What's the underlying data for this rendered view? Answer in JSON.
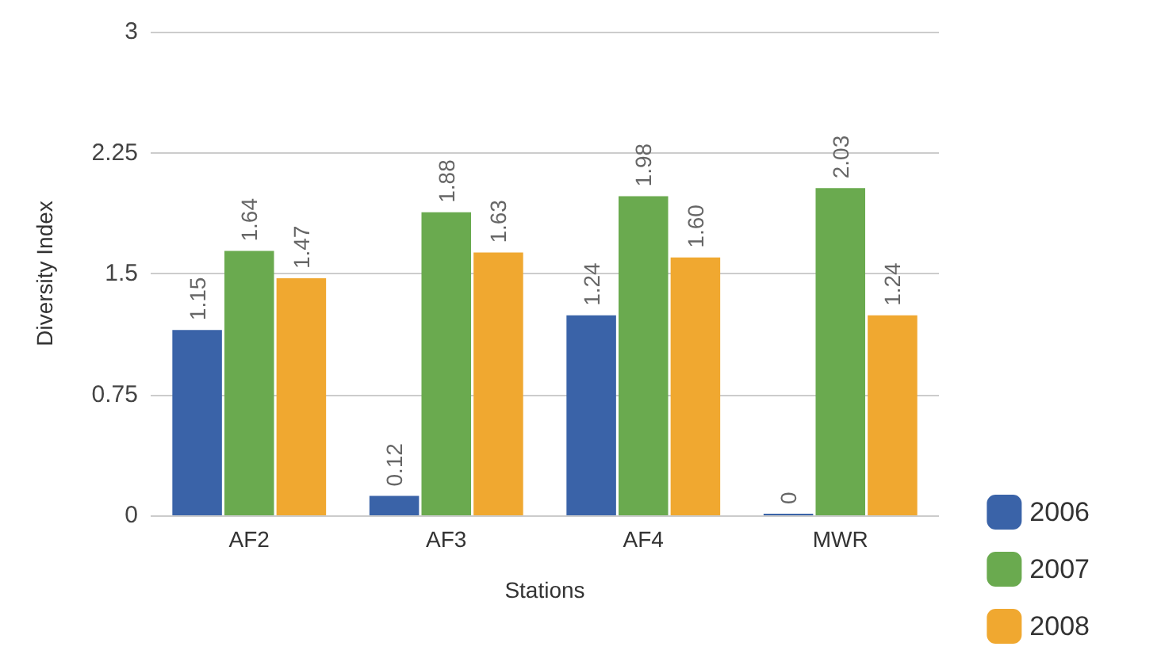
{
  "chart_data": {
    "type": "bar",
    "xlabel": "Stations",
    "ylabel": "Diversity Index",
    "categories": [
      "AF2",
      "AF3",
      "AF4",
      "MWR"
    ],
    "series": [
      {
        "name": "2006",
        "color": "#3a63a8",
        "values": [
          1.15,
          0.12,
          1.24,
          0
        ],
        "value_labels": [
          "1.15",
          "0.12",
          "1.24",
          "0"
        ]
      },
      {
        "name": "2007",
        "color": "#6aaa4f",
        "values": [
          1.64,
          1.88,
          1.98,
          2.03
        ],
        "value_labels": [
          "1.64",
          "1.88",
          "1.98",
          "2.03"
        ]
      },
      {
        "name": "2008",
        "color": "#f0a830",
        "values": [
          1.47,
          1.63,
          1.6,
          1.24
        ],
        "value_labels": [
          "1.47",
          "1.63",
          "1.60",
          "1.24"
        ]
      }
    ],
    "ylim": [
      0,
      3
    ],
    "yticks": [
      0,
      0.75,
      1.5,
      2.25,
      3
    ],
    "grid": "y",
    "legend": "bottom right"
  }
}
